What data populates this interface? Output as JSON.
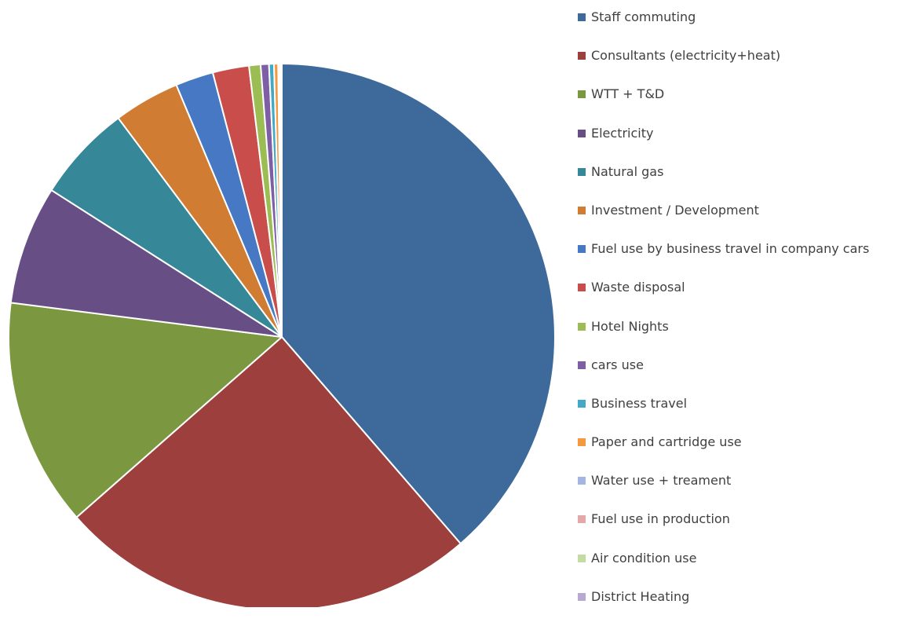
{
  "chart_data": {
    "type": "pie",
    "title": "",
    "start_angle_deg": 0,
    "direction": "clockwise",
    "legend_position": "right",
    "slices": [
      {
        "label": "Staff commuting",
        "value": 39.6,
        "color": "#3D6A9A"
      },
      {
        "label": "Consultants (electricity+heat)",
        "value": 25.5,
        "color": "#9C3F3D"
      },
      {
        "label": "WTT + T&D",
        "value": 13.8,
        "color": "#7B973F"
      },
      {
        "label": "Electricity",
        "value": 7.2,
        "color": "#674F86"
      },
      {
        "label": "Natural gas",
        "value": 5.9,
        "color": "#368797"
      },
      {
        "label": "Investment / Development",
        "value": 4.0,
        "color": "#D07C33"
      },
      {
        "label": "Fuel use by business travel in company cars",
        "value": 2.3,
        "color": "#4678C3"
      },
      {
        "label": "Waste disposal",
        "value": 2.2,
        "color": "#C84D4B"
      },
      {
        "label": "Hotel Nights",
        "value": 0.7,
        "color": "#9BBD54"
      },
      {
        "label": "cars use",
        "value": 0.5,
        "color": "#7E5FA5"
      },
      {
        "label": "Business travel",
        "value": 0.3,
        "color": "#43A9C6"
      },
      {
        "label": "Paper and cartridge use",
        "value": 0.25,
        "color": "#F59941"
      },
      {
        "label": "Water use + treament",
        "value": 0.1,
        "color": "#A3B5E0"
      },
      {
        "label": "Fuel use in production",
        "value": 0.05,
        "color": "#E5A8A8"
      },
      {
        "label": "Air condition use",
        "value": 0.04,
        "color": "#C4DBA4"
      },
      {
        "label": "District Heating",
        "value": 0.03,
        "color": "#B8A9D2"
      }
    ]
  }
}
